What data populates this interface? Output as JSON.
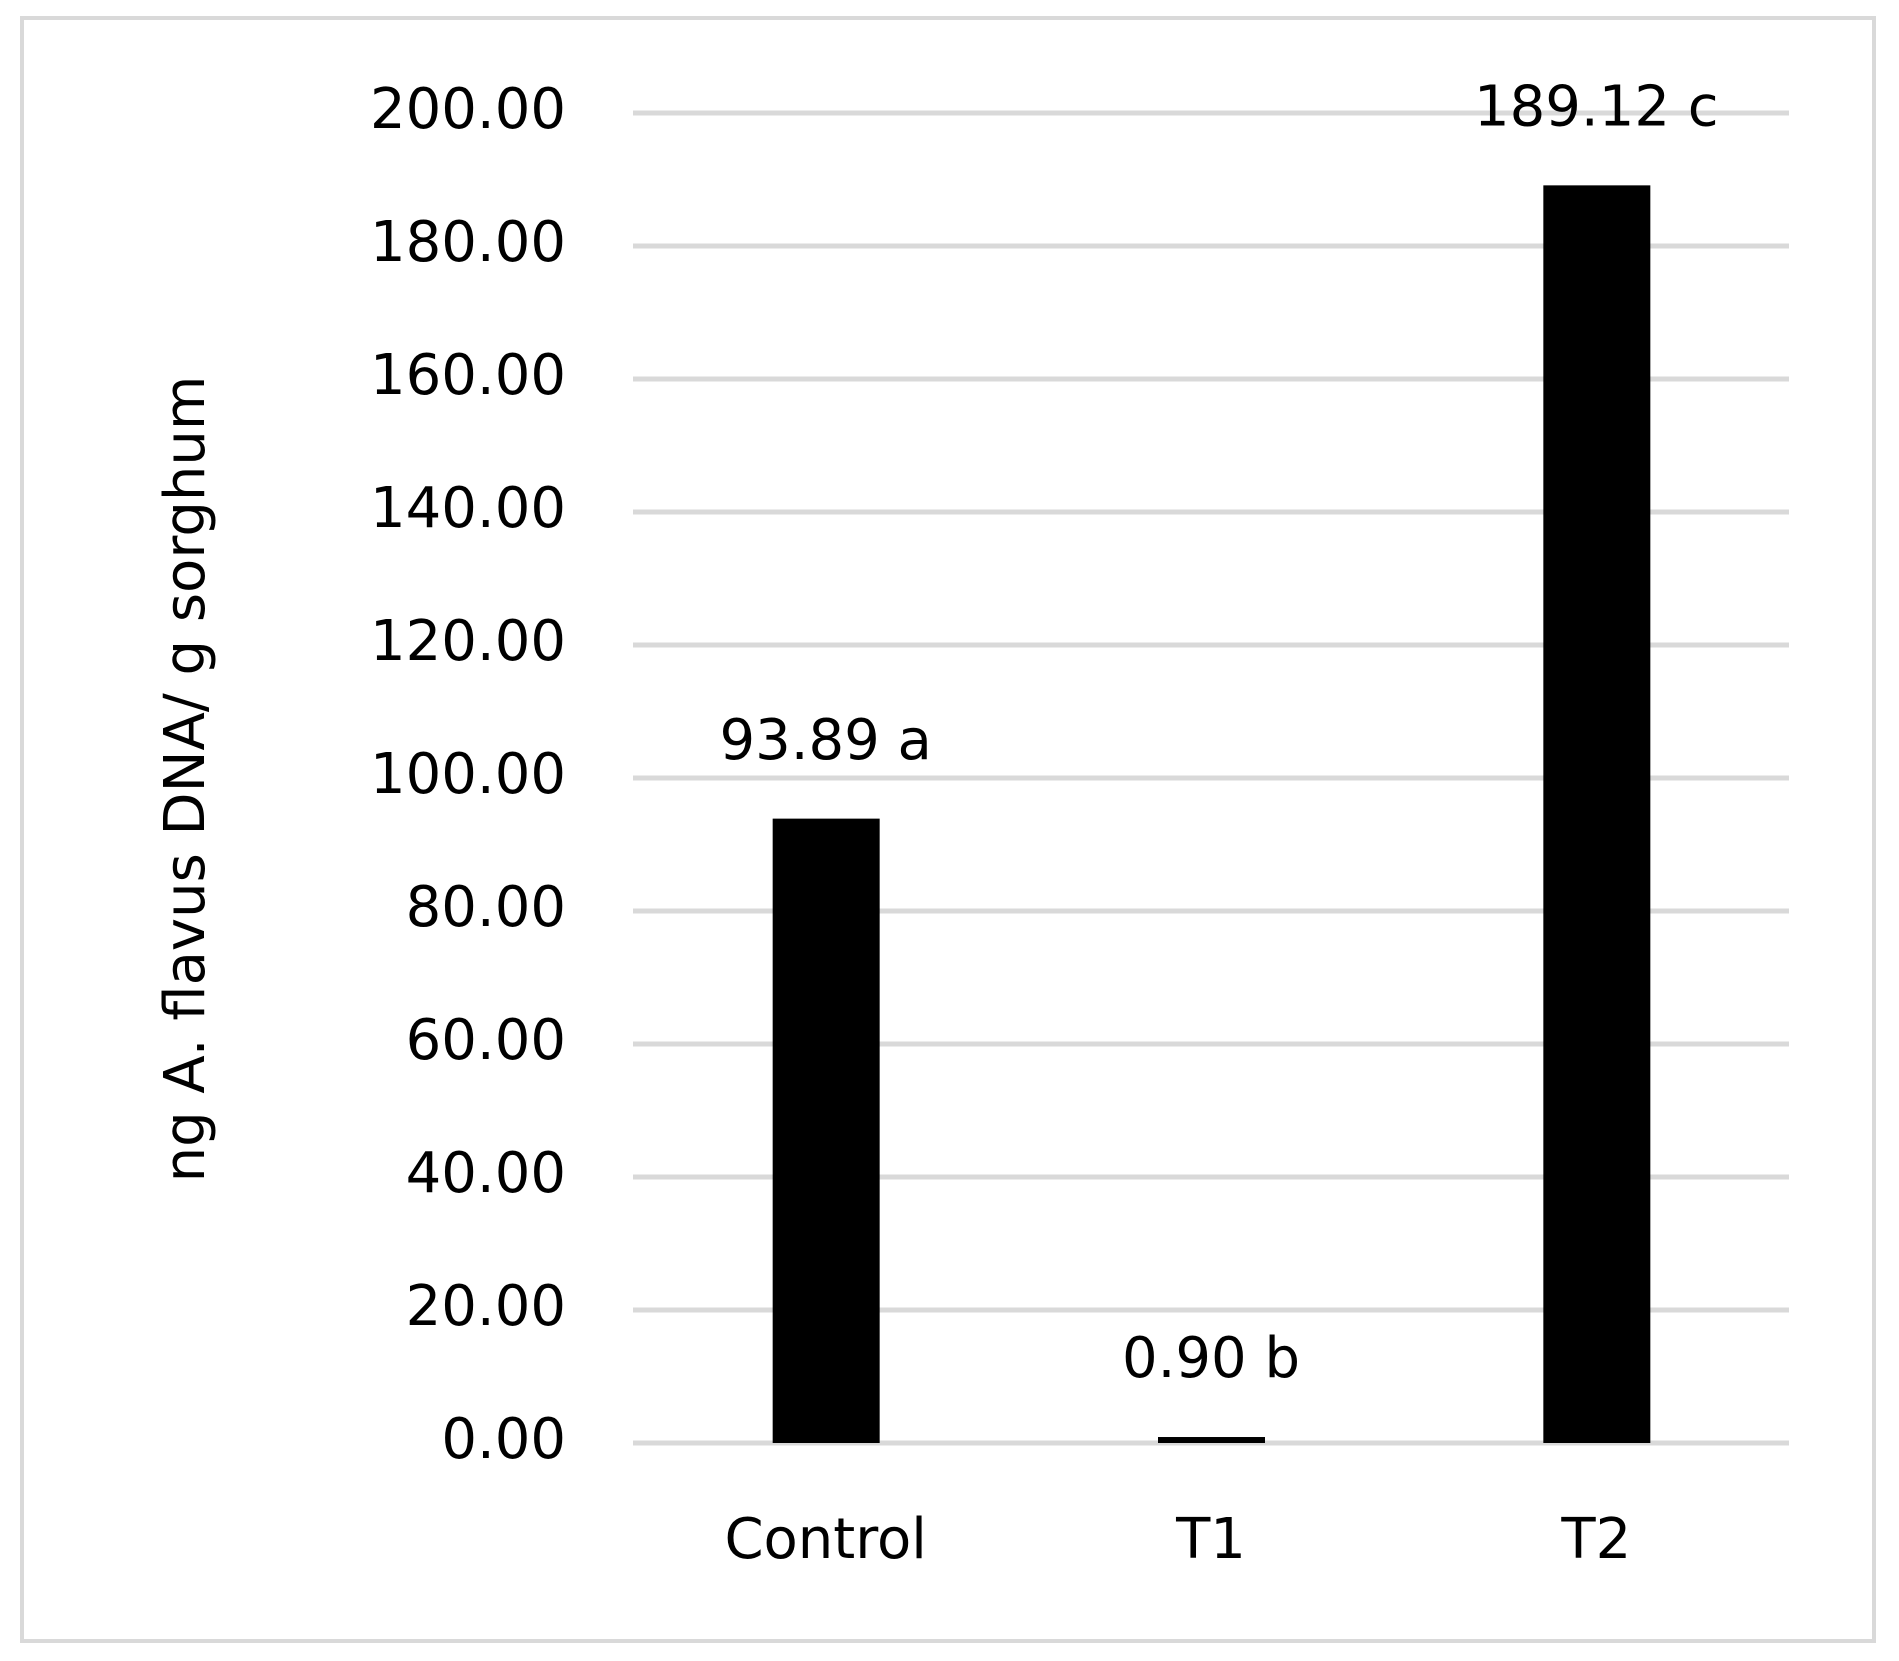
{
  "chart_data": {
    "type": "bar",
    "ylabel": "ng A. flavus DNA/ g sorghum",
    "categories": [
      "Control",
      "T1",
      "T2"
    ],
    "values": [
      93.89,
      0.9,
      189.12
    ],
    "value_labels": [
      "93.89 a",
      "0.90 b",
      "189.12 c"
    ],
    "color": "#000000",
    "ylim": [
      0,
      200
    ],
    "yticks": [
      {
        "value": 0,
        "label": "0.00"
      },
      {
        "value": 20,
        "label": "20.00"
      },
      {
        "value": 40,
        "label": "40.00"
      },
      {
        "value": 60,
        "label": "60.00"
      },
      {
        "value": 80,
        "label": "80.00"
      },
      {
        "value": 100,
        "label": "100.00"
      },
      {
        "value": 120,
        "label": "120.00"
      },
      {
        "value": 140,
        "label": "140.00"
      },
      {
        "value": 160,
        "label": "160.00"
      },
      {
        "value": 180,
        "label": "180.00"
      },
      {
        "value": 200,
        "label": "200.00"
      }
    ],
    "grid": true
  }
}
